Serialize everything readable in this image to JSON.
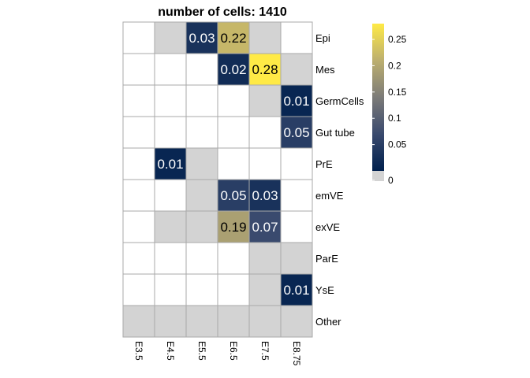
{
  "chart_data": {
    "type": "heatmap",
    "title": "number of cells:  1410",
    "rows": [
      "Epi",
      "Mes",
      "GermCells",
      "Gut tube",
      "PrE",
      "emVE",
      "exVE",
      "ParE",
      "YsE",
      "Other"
    ],
    "columns": [
      "E3.5",
      "E4.5",
      "E5.5",
      "E6.5",
      "E7.5",
      "E8.75"
    ],
    "missing_marker": "NA",
    "values": [
      [
        null,
        "NA",
        0.03,
        0.22,
        "NA",
        null
      ],
      [
        null,
        null,
        null,
        0.02,
        0.28,
        "NA"
      ],
      [
        null,
        null,
        null,
        null,
        "NA",
        0.01
      ],
      [
        null,
        null,
        null,
        null,
        null,
        0.05
      ],
      [
        null,
        0.01,
        "NA",
        null,
        null,
        null
      ],
      [
        null,
        null,
        "NA",
        0.05,
        0.03,
        null
      ],
      [
        null,
        "NA",
        "NA",
        0.19,
        0.07,
        null
      ],
      [
        null,
        null,
        null,
        null,
        "NA",
        "NA"
      ],
      [
        null,
        null,
        null,
        null,
        "NA",
        0.01
      ],
      [
        "NA",
        "NA",
        "NA",
        "NA",
        "NA",
        "NA"
      ]
    ],
    "labels": [
      [
        null,
        null,
        "0.03",
        "0.22",
        null,
        null
      ],
      [
        null,
        null,
        null,
        "0.02",
        "0.28",
        null
      ],
      [
        null,
        null,
        null,
        null,
        null,
        "0.01"
      ],
      [
        null,
        null,
        null,
        null,
        null,
        "0.05"
      ],
      [
        null,
        "0.01",
        null,
        null,
        null,
        null
      ],
      [
        null,
        null,
        null,
        "0.05",
        "0.03",
        null
      ],
      [
        null,
        null,
        null,
        "0.19",
        "0.07",
        null
      ],
      [
        null,
        null,
        null,
        null,
        null,
        null
      ],
      [
        null,
        null,
        null,
        null,
        null,
        "0.01"
      ],
      [
        null,
        null,
        null,
        null,
        null,
        null
      ]
    ],
    "colorbar": {
      "ticks": [
        "0.25",
        "0.2",
        "0.15",
        "0.1",
        "0.05",
        "0"
      ],
      "tick_values": [
        0.25,
        0.2,
        0.15,
        0.1,
        0.05,
        0
      ],
      "range": [
        0,
        0.28
      ],
      "colors": {
        "low": "#00204D",
        "mid": "#7C7B78",
        "high": "#FFEA46",
        "na": "#D3D3D3",
        "empty": "#FFFFFF"
      }
    },
    "grid": true,
    "legend_position": "right"
  }
}
